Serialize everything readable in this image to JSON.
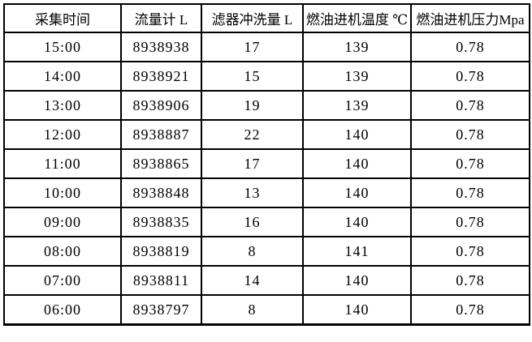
{
  "colors": {
    "border": "#000000",
    "text": "#000000",
    "background": "#ffffff"
  },
  "table": {
    "columns": [
      {
        "label": "采集时间"
      },
      {
        "label": "流量计 L"
      },
      {
        "label": "滤器冲洗量 L"
      },
      {
        "label": "燃油进机温度 ℃"
      },
      {
        "label": "燃油进机压力Mpa"
      }
    ],
    "rows": [
      [
        "15:00",
        "8938938",
        "17",
        "139",
        "0.78"
      ],
      [
        "14:00",
        "8938921",
        "15",
        "139",
        "0.78"
      ],
      [
        "13:00",
        "8938906",
        "19",
        "139",
        "0.78"
      ],
      [
        "12:00",
        "8938887",
        "22",
        "140",
        "0.78"
      ],
      [
        "11:00",
        "8938865",
        "17",
        "140",
        "0.78"
      ],
      [
        "10:00",
        "8938848",
        "13",
        "140",
        "0.78"
      ],
      [
        "09:00",
        "8938835",
        "16",
        "140",
        "0.78"
      ],
      [
        "08:00",
        "8938819",
        "8",
        "141",
        "0.78"
      ],
      [
        "07:00",
        "8938811",
        "14",
        "140",
        "0.78"
      ],
      [
        "06:00",
        "8938797",
        "8",
        "140",
        "0.78"
      ]
    ]
  }
}
